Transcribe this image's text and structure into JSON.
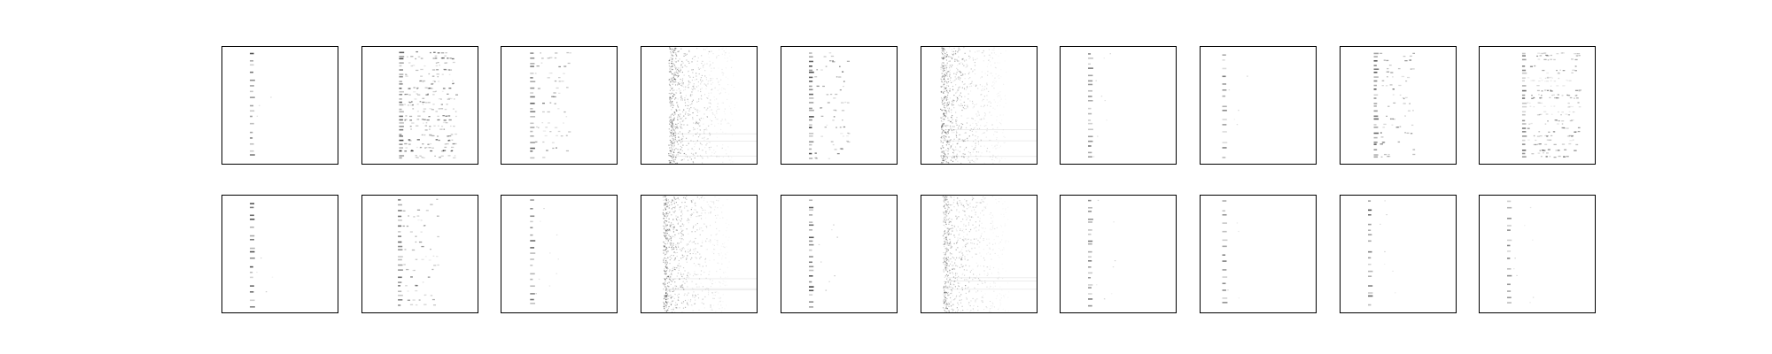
{
  "chart_data": {
    "type": "heatmap",
    "title": "",
    "description_free": true,
    "grid": false,
    "colormap": "gray_r",
    "colors": {
      "background": "#ffffff",
      "frame": "#000000",
      "mark": "#000000"
    },
    "rows": 2,
    "cols": 10,
    "panels": [
      {
        "row": 0,
        "col": 0,
        "pattern": "narrow-column",
        "column_position": 0.25,
        "density": 0.35,
        "intensity": 0.7
      },
      {
        "row": 0,
        "col": 1,
        "pattern": "dense-stripes",
        "column_position": 0.33,
        "density": 0.9,
        "intensity": 0.75
      },
      {
        "row": 0,
        "col": 2,
        "pattern": "stripes",
        "column_position": 0.26,
        "density": 0.55,
        "intensity": 0.65
      },
      {
        "row": 0,
        "col": 3,
        "pattern": "noise-column",
        "column_position": 0.27,
        "density": 0.95,
        "intensity": 0.6
      },
      {
        "row": 0,
        "col": 4,
        "pattern": "stripes",
        "column_position": 0.25,
        "density": 0.7,
        "intensity": 0.75
      },
      {
        "row": 0,
        "col": 5,
        "pattern": "noise-column",
        "column_position": 0.2,
        "density": 0.95,
        "intensity": 0.6
      },
      {
        "row": 0,
        "col": 6,
        "pattern": "narrow-column",
        "column_position": 0.25,
        "density": 0.45,
        "intensity": 0.55
      },
      {
        "row": 0,
        "col": 7,
        "pattern": "sparse-column",
        "column_position": 0.2,
        "density": 0.25,
        "intensity": 0.5
      },
      {
        "row": 0,
        "col": 8,
        "pattern": "stripes",
        "column_position": 0.3,
        "density": 0.7,
        "intensity": 0.7
      },
      {
        "row": 0,
        "col": 9,
        "pattern": "dense-stripes",
        "column_position": 0.38,
        "density": 0.7,
        "intensity": 0.6
      },
      {
        "row": 1,
        "col": 0,
        "pattern": "narrow-column",
        "column_position": 0.25,
        "density": 0.35,
        "intensity": 0.7
      },
      {
        "row": 1,
        "col": 1,
        "pattern": "stripes",
        "column_position": 0.32,
        "density": 0.55,
        "intensity": 0.65
      },
      {
        "row": 1,
        "col": 2,
        "pattern": "sparse-column",
        "column_position": 0.26,
        "density": 0.35,
        "intensity": 0.6
      },
      {
        "row": 1,
        "col": 3,
        "pattern": "noise-column",
        "column_position": 0.22,
        "density": 0.95,
        "intensity": 0.6
      },
      {
        "row": 1,
        "col": 4,
        "pattern": "narrow-column",
        "column_position": 0.25,
        "density": 0.55,
        "intensity": 0.75
      },
      {
        "row": 1,
        "col": 5,
        "pattern": "noise-column",
        "column_position": 0.22,
        "density": 0.9,
        "intensity": 0.5
      },
      {
        "row": 1,
        "col": 6,
        "pattern": "narrow-column",
        "column_position": 0.25,
        "density": 0.45,
        "intensity": 0.55
      },
      {
        "row": 1,
        "col": 7,
        "pattern": "sparse-column",
        "column_position": 0.2,
        "density": 0.25,
        "intensity": 0.5
      },
      {
        "row": 1,
        "col": 8,
        "pattern": "sparse-column",
        "column_position": 0.25,
        "density": 0.3,
        "intensity": 0.7
      },
      {
        "row": 1,
        "col": 9,
        "pattern": "sparse-column",
        "column_position": 0.25,
        "density": 0.25,
        "intensity": 0.55
      }
    ]
  }
}
